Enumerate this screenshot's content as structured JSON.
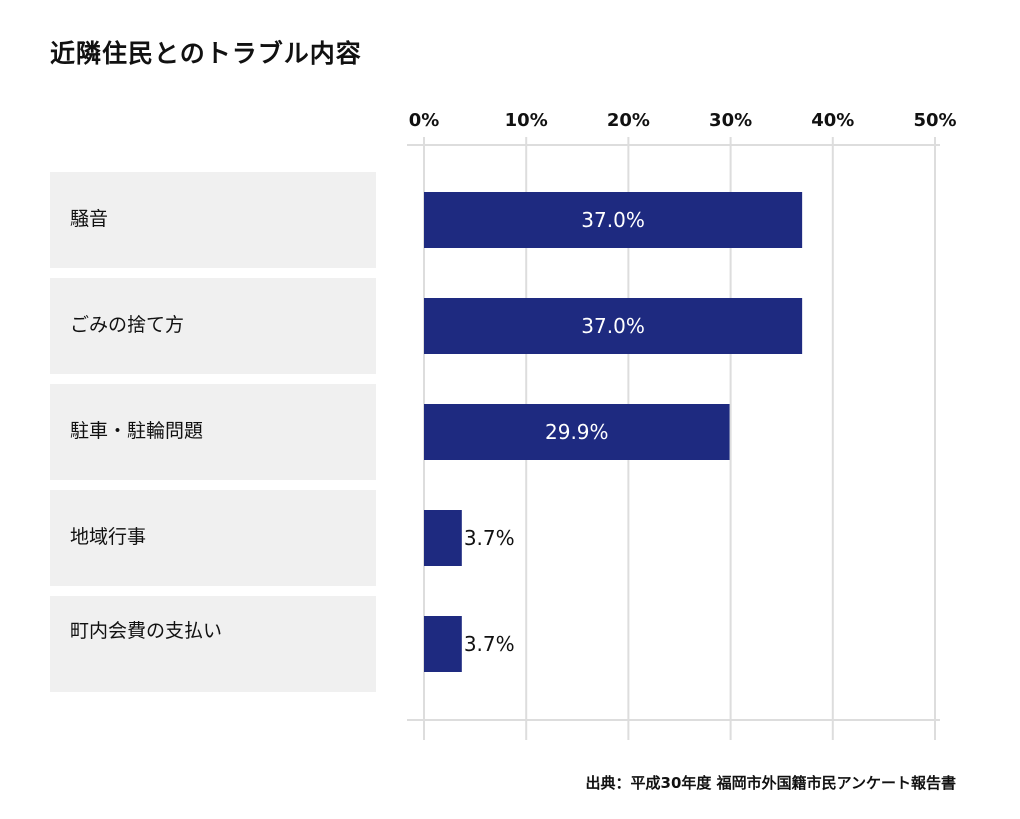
{
  "title": "近隣住民とのトラブル内容",
  "source": "出典：平成30年度 福岡市外国籍市民アンケート報告書",
  "chart_data": {
    "type": "bar",
    "orientation": "horizontal",
    "categories": [
      "騒音",
      "ごみの捨て方",
      "駐車・駐輪問題",
      "地域行事",
      "町内会費の支払い"
    ],
    "values": [
      37.0,
      37.0,
      29.9,
      3.7,
      3.7
    ],
    "data_labels": [
      "37.0%",
      "37.0%",
      "29.9%",
      "3.7%",
      "3.7%"
    ],
    "xlim": [
      0,
      50
    ],
    "x_ticks": [
      "0%",
      "10%",
      "20%",
      "30%",
      "40%",
      "50%"
    ],
    "x_axis_position": "top",
    "grid": true,
    "bar_color": "#1e2a80",
    "category_box_color": "#f0f0f0",
    "grid_color": "#dddddd"
  }
}
